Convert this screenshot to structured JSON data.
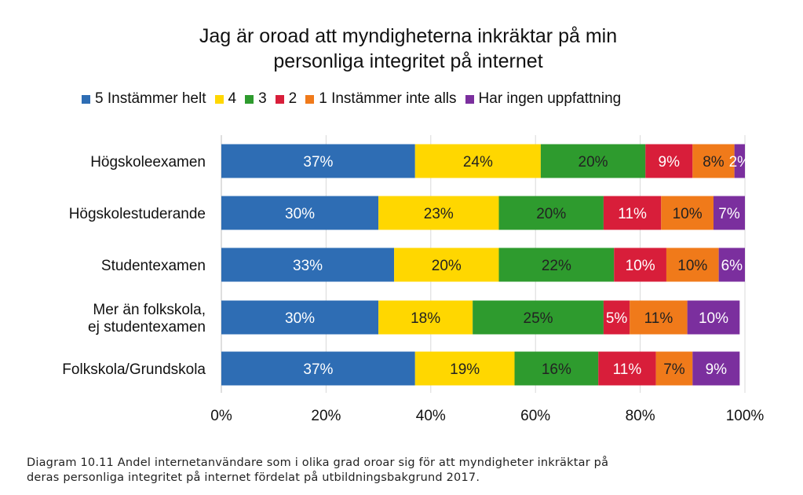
{
  "chart_data": {
    "type": "bar",
    "orientation": "horizontal",
    "stacked": true,
    "title_line1": "Jag är oroad att myndigheterna inkräktar på min",
    "title_line2": "personliga integritet på internet",
    "categories": [
      "Högskoleexamen",
      "Högskolestuderande",
      "Studentexamen",
      "Mer än folkskola, ej studentexamen",
      "Folkskola/Grundskola"
    ],
    "category_lines": [
      [
        "Högskoleexamen"
      ],
      [
        "Högskolestuderande"
      ],
      [
        "Studentexamen"
      ],
      [
        "Mer än folkskola,",
        "ej studentexamen"
      ],
      [
        "Folkskola/Grundskola"
      ]
    ],
    "series": [
      {
        "name": "5 Instämmer helt",
        "color": "#2e6db4",
        "label_color": "#ffffff",
        "values": [
          37,
          30,
          33,
          30,
          37
        ],
        "labels": [
          "37%",
          "30%",
          "33%",
          "30%",
          "37%"
        ]
      },
      {
        "name": "4",
        "color": "#ffd700",
        "label_color": "#222222",
        "values": [
          24,
          23,
          20,
          18,
          19
        ],
        "labels": [
          "24%",
          "23%",
          "20%",
          "18%",
          "19%"
        ]
      },
      {
        "name": "3",
        "color": "#2e9b2e",
        "label_color": "#222222",
        "values": [
          20,
          20,
          22,
          25,
          16
        ],
        "labels": [
          "20%",
          "20%",
          "22%",
          "25%",
          "16%"
        ]
      },
      {
        "name": "2",
        "color": "#d81e3a",
        "label_color": "#ffffff",
        "values": [
          9,
          11,
          10,
          5,
          11
        ],
        "labels": [
          "9%",
          "11%",
          "10%",
          "5%",
          "11%"
        ]
      },
      {
        "name": "1 Instämmer inte alls",
        "color": "#f07a1a",
        "label_color": "#222222",
        "values": [
          8,
          10,
          10,
          11,
          7
        ],
        "labels": [
          "8%",
          "10%",
          "10%",
          "11%",
          "7%"
        ]
      },
      {
        "name": "Har ingen uppfattning",
        "color": "#7b2f9e",
        "label_color": "#ffffff",
        "values": [
          2,
          7,
          6,
          10,
          9
        ],
        "labels": [
          "2%",
          "7%",
          "6%",
          "10%",
          "9%"
        ]
      }
    ],
    "xticks": [
      "0%",
      "20%",
      "40%",
      "60%",
      "80%",
      "100%"
    ],
    "xlim": [
      0,
      100
    ],
    "grid": true,
    "legend_position": "top"
  },
  "caption": {
    "line1": "Diagram 10.11 Andel internetanvändare som i olika grad oroar sig för att myndigheter inkräktar på",
    "line2": "deras personliga integritet på internet fördelat på utbildningsbakgrund 2017."
  }
}
